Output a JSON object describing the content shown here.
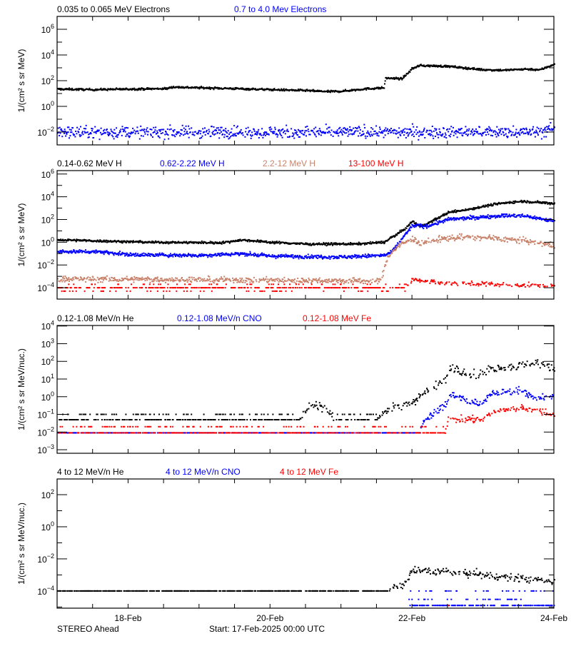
{
  "chart_data": [
    {
      "type": "scatter",
      "ylabel": "1/(cm² s sr MeV)",
      "yscale": "log",
      "ylim": [
        0.001,
        10000000
      ],
      "ytick_exponents": [
        -2,
        0,
        2,
        4,
        6
      ],
      "series": [
        {
          "name": "0.035 to 0.065 MeV Electrons",
          "color": "#000000",
          "points": [
            [
              0,
              22
            ],
            [
              0.5,
              20
            ],
            [
              1,
              22
            ],
            [
              1.55,
              24
            ],
            [
              1.6,
              32
            ],
            [
              2,
              28
            ],
            [
              2.5,
              24
            ],
            [
              3,
              20
            ],
            [
              3.5,
              17
            ],
            [
              3.8,
              14
            ],
            [
              4.0,
              15
            ],
            [
              4.3,
              22
            ],
            [
              4.6,
              28
            ],
            [
              4.62,
              160
            ],
            [
              4.85,
              140
            ],
            [
              5.0,
              900
            ],
            [
              5.1,
              1500
            ],
            [
              5.5,
              1300
            ],
            [
              6.0,
              700
            ],
            [
              6.3,
              650
            ],
            [
              6.6,
              800
            ],
            [
              6.8,
              700
            ],
            [
              6.95,
              1500
            ],
            [
              7.0,
              2000
            ]
          ]
        },
        {
          "name": "0.7 to 4.0 Mev Electrons",
          "color": "#0000ff",
          "points": [
            [
              0,
              0.01
            ],
            [
              6.8,
              0.01
            ],
            [
              7,
              0.02
            ]
          ]
        }
      ]
    },
    {
      "type": "scatter",
      "ylabel": "1/(cm² s sr MeV)",
      "yscale": "log",
      "ylim": [
        1e-05,
        2000000
      ],
      "ytick_exponents": [
        -4,
        -2,
        0,
        2,
        4,
        6
      ],
      "series": [
        {
          "name": "0.14-0.62 MeV H",
          "color": "#000000",
          "points": [
            [
              0,
              1.6
            ],
            [
              1.3,
              1.0
            ],
            [
              2.3,
              0.9
            ],
            [
              2.6,
              1.6
            ],
            [
              3.0,
              1.0
            ],
            [
              3.5,
              0.7
            ],
            [
              4.2,
              0.7
            ],
            [
              4.6,
              1.0
            ],
            [
              4.7,
              2.5
            ],
            [
              4.9,
              16
            ],
            [
              5.0,
              70
            ],
            [
              5.1,
              25
            ],
            [
              5.2,
              40
            ],
            [
              5.5,
              400
            ],
            [
              5.8,
              800
            ],
            [
              6.2,
              2500
            ],
            [
              6.55,
              4000
            ],
            [
              7.0,
              2500
            ]
          ]
        },
        {
          "name": "0.62-2.22 MeV H",
          "color": "#0000ff",
          "points": [
            [
              0,
              0.15
            ],
            [
              0.6,
              0.15
            ],
            [
              1,
              0.08
            ],
            [
              2,
              0.07
            ],
            [
              2.6,
              0.1
            ],
            [
              3,
              0.06
            ],
            [
              4,
              0.05
            ],
            [
              4.6,
              0.07
            ],
            [
              4.7,
              0.12
            ],
            [
              4.9,
              5
            ],
            [
              5.0,
              30
            ],
            [
              5.2,
              25
            ],
            [
              5.5,
              100
            ],
            [
              5.9,
              150
            ],
            [
              6.25,
              220
            ],
            [
              6.6,
              200
            ],
            [
              7,
              70
            ]
          ]
        },
        {
          "name": "2.2-12 MeV H",
          "color": "#c8826a",
          "points": [
            [
              0,
              0.0006
            ],
            [
              4.55,
              0.0004
            ],
            [
              4.65,
              0.05
            ],
            [
              4.8,
              0.5
            ],
            [
              5.0,
              2
            ],
            [
              5.1,
              0.8
            ],
            [
              5.3,
              1.6
            ],
            [
              5.7,
              3
            ],
            [
              6.2,
              2.2
            ],
            [
              6.6,
              1.3
            ],
            [
              7,
              0.5
            ]
          ]
        },
        {
          "name": "13-100 MeV H",
          "color": "#ff0000",
          "points": [
            [
              0,
              0.0001
            ],
            [
              4.9,
              0.0001
            ],
            [
              5.0,
              0.0005
            ],
            [
              5.5,
              0.00025
            ],
            [
              7,
              0.00015
            ]
          ],
          "baseline_levels": [
            0.0001,
            0.0002,
            5e-05
          ]
        }
      ]
    },
    {
      "type": "scatter",
      "ylabel": "1/(cm² s sr MeV/nuc.)",
      "yscale": "log",
      "ylim": [
        0.00063,
        10700
      ],
      "ytick_exponents": [
        -3,
        -2,
        -1,
        0,
        1,
        2,
        3,
        4
      ],
      "series": [
        {
          "name": "0.12-1.08 MeV/n He",
          "color": "#000000",
          "points": [
            [
              0,
              0.05
            ],
            [
              3.4,
              0.05
            ],
            [
              3.55,
              0.3
            ],
            [
              3.75,
              0.3
            ],
            [
              3.9,
              0.05
            ],
            [
              4.5,
              0.05
            ],
            [
              4.6,
              0.15
            ],
            [
              5.0,
              0.5
            ],
            [
              5.2,
              2
            ],
            [
              5.45,
              8
            ],
            [
              5.55,
              50
            ],
            [
              5.8,
              20
            ],
            [
              6.0,
              20
            ],
            [
              6.1,
              40
            ],
            [
              6.6,
              60
            ],
            [
              6.7,
              100
            ],
            [
              7,
              40
            ]
          ],
          "baseline_levels": [
            0.05,
            0.1
          ]
        },
        {
          "name": "0.12-1.08 MeV/n CNO",
          "color": "#0000ff",
          "points": [
            [
              0,
              0.009
            ],
            [
              5.1,
              0.009
            ],
            [
              5.15,
              0.04
            ],
            [
              5.3,
              0.12
            ],
            [
              5.45,
              0.3
            ],
            [
              5.55,
              1.4
            ],
            [
              5.8,
              0.5
            ],
            [
              6.0,
              0.4
            ],
            [
              6.1,
              1.4
            ],
            [
              6.55,
              2.5
            ],
            [
              6.7,
              0.7
            ],
            [
              7,
              1.2
            ]
          ],
          "baseline_levels": [
            0.009
          ]
        },
        {
          "name": "0.12-1.08 MeV Fe",
          "color": "#ff0000",
          "points": [
            [
              0,
              0.009
            ],
            [
              5.45,
              0.009
            ],
            [
              5.5,
              0.05
            ],
            [
              6.0,
              0.05
            ],
            [
              6.1,
              0.13
            ],
            [
              6.55,
              0.25
            ],
            [
              7,
              0.1
            ]
          ],
          "baseline_levels": [
            0.009,
            0.02
          ]
        }
      ]
    },
    {
      "type": "scatter",
      "ylabel": "1/(cm² s sr MeV/nuc.)",
      "yscale": "log",
      "ylim": [
        8.5e-06,
        950
      ],
      "ytick_exponents": [
        -4,
        -2,
        0,
        2
      ],
      "series": [
        {
          "name": "4 to 12 MeV/n He",
          "color": "#000000",
          "points": [
            [
              0,
              0.0001
            ],
            [
              4.6,
              0.0001
            ],
            [
              4.9,
              0.0003
            ],
            [
              5.0,
              0.0018
            ],
            [
              5.5,
              0.0016
            ],
            [
              6.2,
              0.0008
            ],
            [
              7,
              0.0004
            ]
          ],
          "baseline_levels": [
            0.0001
          ]
        },
        {
          "name": "4 to 12 MeV/n CNO",
          "color": "#0000ff",
          "points": [
            [
              0,
              1.25e-05
            ],
            [
              7,
              1.25e-05
            ]
          ],
          "baseline_levels": [
            1.25e-05,
            0.0001,
            3e-05
          ]
        },
        {
          "name": "4 to 12 MeV Fe",
          "color": "#ff0000",
          "points": [
            [
              5.5,
              1.25e-05
            ]
          ]
        }
      ]
    }
  ],
  "x_axis": {
    "range": [
      "17-Feb-2025 00:00",
      "24-Feb-2025 00:00"
    ],
    "tick_labels": [
      {
        "day": 1,
        "label": "18-Feb"
      },
      {
        "day": 3,
        "label": "20-Feb"
      },
      {
        "day": 5,
        "label": "22-Feb"
      },
      {
        "day": 7,
        "label": "24-Feb"
      }
    ]
  },
  "footer": {
    "spacecraft": "STEREO Ahead",
    "start": "Start: 17-Feb-2025 00:00 UTC"
  }
}
